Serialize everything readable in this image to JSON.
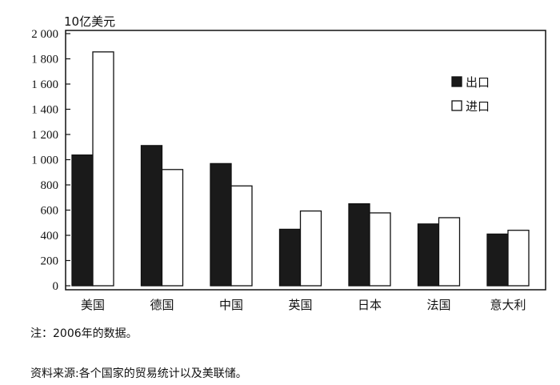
{
  "chart_data": {
    "type": "bar",
    "unit_label": "10亿美元",
    "categories": [
      "美国",
      "德国",
      "中国",
      "英国",
      "日本",
      "法国",
      "意大利"
    ],
    "series": [
      {
        "name": "出口",
        "color": "#1a1a1a",
        "values": [
          1037,
          1112,
          969,
          448,
          650,
          490,
          410
        ]
      },
      {
        "name": "进口",
        "color": "#ffffff",
        "values": [
          1855,
          922,
          792,
          593,
          578,
          540,
          440
        ]
      }
    ],
    "ylim": [
      0,
      2000
    ],
    "y_ticks": [
      0,
      200,
      400,
      600,
      800,
      1000,
      1200,
      1400,
      1600,
      1800,
      2000
    ],
    "y_tick_labels": [
      "0",
      "200",
      "400",
      "600",
      "800",
      "1 000",
      "1 200",
      "1 400",
      "1 600",
      "1 800",
      "2 000"
    ],
    "legend_position": "right",
    "grid": false
  },
  "notes": {
    "note": "注：2006年的数据。",
    "source": "资料来源:各个国家的贸易统计以及美联储。"
  }
}
